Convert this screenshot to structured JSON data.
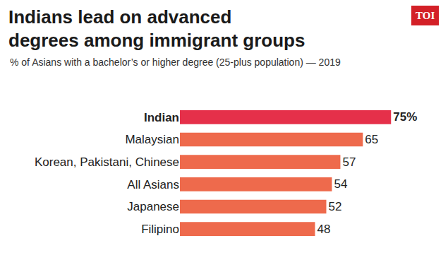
{
  "chart_data": {
    "type": "bar",
    "orientation": "horizontal",
    "title": "Indians lead on advanced\ndegrees among immigrant groups",
    "subtitle": "% of Asians with a bachelor’s or higher degree (25-plus population) — 2019",
    "logo": "TOI",
    "categories": [
      "Indian",
      "Malaysian",
      "Korean, Pakistani, Chinese",
      "All Asians",
      "Japanese",
      "Filipino"
    ],
    "values": [
      75,
      65,
      57,
      54,
      52,
      48
    ],
    "value_labels": [
      "75%",
      "65",
      "57",
      "54",
      "52",
      "48"
    ],
    "colors": [
      "#e5304a",
      "#ee6a4c",
      "#ee6a4c",
      "#ee6a4c",
      "#ee6a4c",
      "#ee6a4c"
    ],
    "data_labels": true,
    "tick_labels": false,
    "grid": false
  }
}
